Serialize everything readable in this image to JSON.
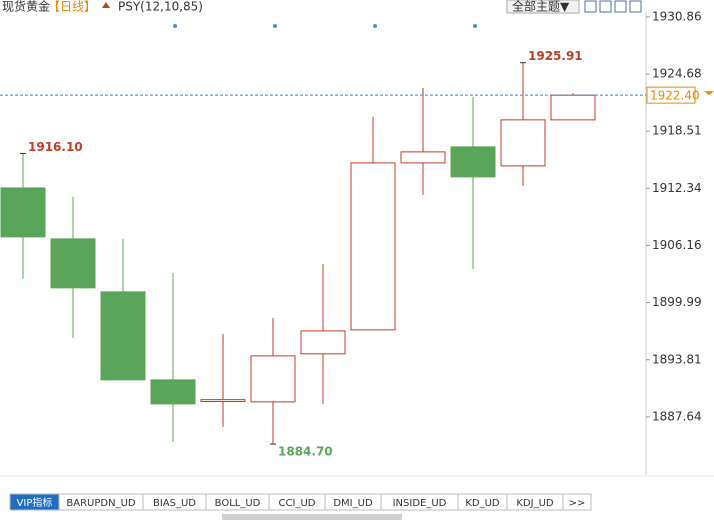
{
  "toolbar": {
    "symbol": "现货黄金",
    "period": "【日线】",
    "indicator": "PSY(12,10,85)",
    "theme_button": "全部主题▼"
  },
  "tabs": [
    "VIP指标",
    "BARUPDN_UD",
    "BIAS_UD",
    "BOLL_UD",
    "CCI_UD",
    "DMI_UD",
    "INSIDE_UD",
    "KD_UD",
    "KDJ_UD",
    ">>"
  ],
  "chart_data": {
    "type": "candlestick",
    "categories": [
      null,
      null,
      null,
      null,
      null,
      null,
      null,
      null,
      null,
      null,
      null,
      null
    ],
    "open": [
      1912.38,
      1906.87,
      1901.15,
      1891.64,
      1889.3,
      1889.26,
      1894.45,
      1897.04,
      1915.08,
      1916.81,
      1914.76,
      1919.73
    ],
    "high": [
      1916.1,
      1911.41,
      1906.87,
      1903.2,
      1896.61,
      1898.34,
      1904.17,
      1920.06,
      1923.19,
      1922.22,
      1925.91,
      1922.6
    ],
    "low": [
      1902.55,
      1896.18,
      1891.64,
      1884.94,
      1886.56,
      1884.7,
      1889.04,
      1897.04,
      1911.63,
      1903.63,
      1912.6,
      1919.73
    ],
    "close": [
      1907.09,
      1901.58,
      1891.64,
      1889.04,
      1889.5,
      1894.23,
      1896.93,
      1915.08,
      1916.27,
      1913.57,
      1919.73,
      1922.4
    ],
    "high_labels": [
      "1916.10",
      null,
      null,
      null,
      null,
      null,
      null,
      null,
      null,
      null,
      "1925.91",
      null
    ],
    "low_labels": [
      null,
      null,
      null,
      null,
      null,
      "1884.70",
      null,
      null,
      null,
      null,
      null,
      null
    ],
    "up_color": "#c23b22",
    "down_color": "#5aa55a",
    "last_price": {
      "value": 1922.4,
      "label": "1922.40"
    },
    "ylim": [
      1881.9,
      1931.6
    ],
    "yticks": [
      1930.86,
      1924.68,
      1918.51,
      1912.34,
      1906.16,
      1899.99,
      1893.81,
      1887.64
    ]
  }
}
